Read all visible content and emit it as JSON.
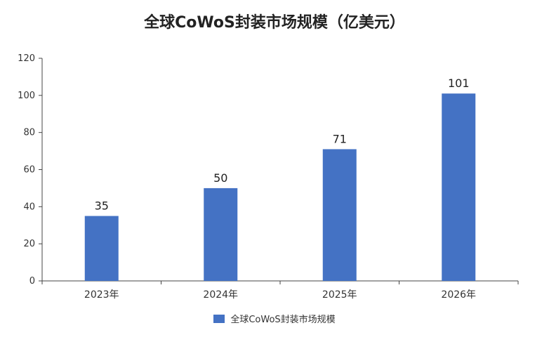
{
  "chart_data": {
    "type": "bar",
    "title": "全球CoWoS封装市场规模（亿美元）",
    "categories": [
      "2023年",
      "2024年",
      "2025年",
      "2026年"
    ],
    "series": [
      {
        "name": "全球CoWoS封装市场规模",
        "values": [
          35,
          50,
          71,
          101
        ],
        "color": "#4472C4"
      }
    ],
    "data_labels": [
      "35",
      "50",
      "71",
      "101"
    ],
    "ylim": [
      0,
      120
    ],
    "yticks": [
      0,
      20,
      40,
      60,
      80,
      100,
      120
    ],
    "xlabel": "",
    "ylabel": "",
    "grid": false,
    "legend_position": "bottom"
  }
}
